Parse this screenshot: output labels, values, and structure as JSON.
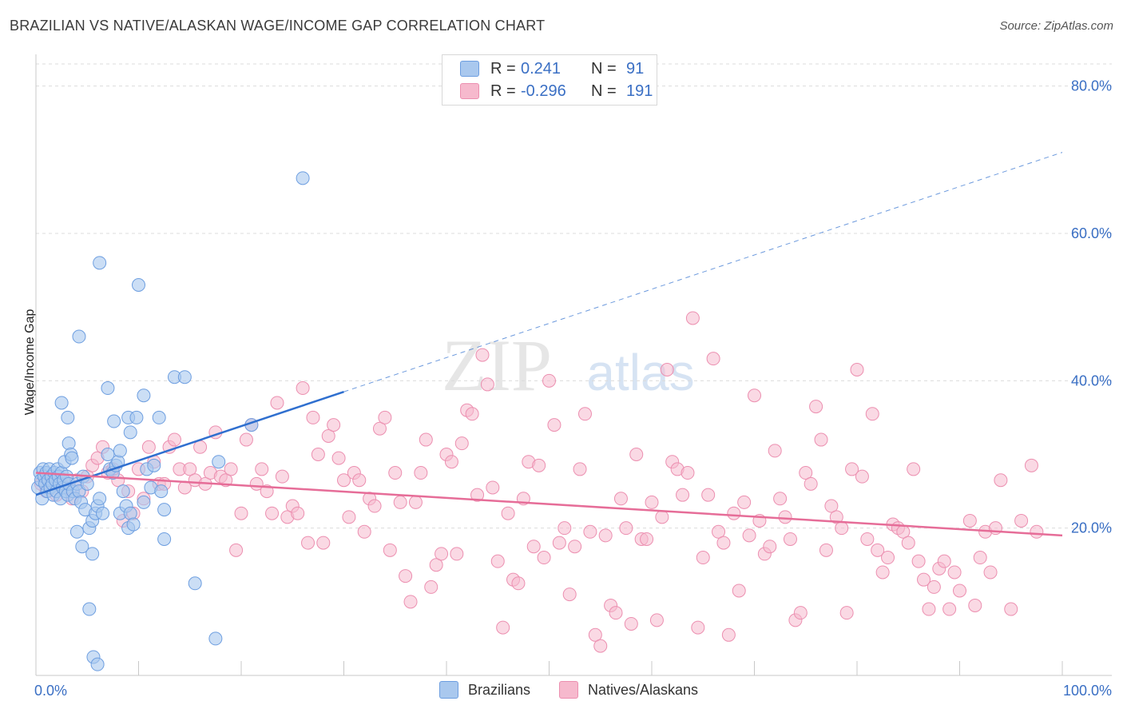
{
  "title": "BRAZILIAN VS NATIVE/ALASKAN WAGE/INCOME GAP CORRELATION CHART",
  "source": "Source: ZipAtlas.com",
  "watermark": {
    "zip": "ZIP",
    "atlas": "atlas"
  },
  "legend": {
    "r_label": "R =",
    "n_label": "N =",
    "rows": [
      {
        "r": "0.241",
        "n": "91"
      },
      {
        "r": "-0.296",
        "n": "191"
      }
    ]
  },
  "bottom_legend": [
    "Brazilians",
    "Natives/Alaskans"
  ],
  "colors": {
    "blue_fill": "#a9c8ee",
    "blue_stroke": "#6d9ee0",
    "blue_line": "#2f6fcf",
    "pink_fill": "#f6b9cd",
    "pink_stroke": "#ec8fb0",
    "pink_line": "#e66d98",
    "tick_text": "#3a6fc4"
  },
  "chart_data": {
    "type": "scatter",
    "title": "BRAZILIAN VS NATIVE/ALASKAN WAGE/INCOME GAP CORRELATION CHART",
    "xlabel": "",
    "ylabel": "Wage/Income Gap",
    "xlim": [
      0,
      100
    ],
    "ylim": [
      0,
      83
    ],
    "x_tick_labels": [
      "0.0%",
      "100.0%"
    ],
    "y_ticks": [
      20,
      40,
      60,
      80
    ],
    "y_tick_labels": [
      "20.0%",
      "40.0%",
      "60.0%",
      "80.0%"
    ],
    "grid": "horizontal dashed",
    "legend_position": "top-center",
    "series": [
      {
        "name": "Brazilians",
        "R": 0.241,
        "N": 91,
        "trend": {
          "solid": [
            [
              0,
              24.5
            ],
            [
              30,
              38.5
            ]
          ],
          "dashed": [
            [
              30,
              38.5
            ],
            [
              100,
              71
            ]
          ]
        },
        "points": [
          [
            0.2,
            25.5
          ],
          [
            0.4,
            27.5
          ],
          [
            0.5,
            26.5
          ],
          [
            0.6,
            24
          ],
          [
            0.7,
            28
          ],
          [
            0.8,
            27
          ],
          [
            0.9,
            26
          ],
          [
            1.0,
            27.5
          ],
          [
            1.1,
            25
          ],
          [
            1.2,
            26.5
          ],
          [
            1.3,
            28
          ],
          [
            1.4,
            25.5
          ],
          [
            1.5,
            27
          ],
          [
            1.6,
            26
          ],
          [
            1.7,
            24.5
          ],
          [
            1.8,
            27.5
          ],
          [
            1.9,
            26.5
          ],
          [
            2.0,
            25
          ],
          [
            2.1,
            28
          ],
          [
            2.2,
            27
          ],
          [
            2.3,
            26
          ],
          [
            2.4,
            24
          ],
          [
            2.5,
            27.5
          ],
          [
            2.6,
            25.5
          ],
          [
            2.7,
            26.5
          ],
          [
            2.8,
            29
          ],
          [
            2.9,
            25
          ],
          [
            3.0,
            27
          ],
          [
            3.1,
            24.5
          ],
          [
            3.2,
            26
          ],
          [
            2.5,
            37
          ],
          [
            3.1,
            35
          ],
          [
            3.2,
            31.5
          ],
          [
            3.4,
            30
          ],
          [
            3.5,
            29.5
          ],
          [
            3.6,
            25
          ],
          [
            3.8,
            24
          ],
          [
            4.0,
            26
          ],
          [
            4.2,
            25
          ],
          [
            4.4,
            23.5
          ],
          [
            4.6,
            27
          ],
          [
            4.8,
            22.5
          ],
          [
            5.0,
            26
          ],
          [
            5.2,
            20
          ],
          [
            5.5,
            21
          ],
          [
            5.8,
            22
          ],
          [
            6.0,
            23
          ],
          [
            6.2,
            24
          ],
          [
            6.5,
            22
          ],
          [
            7.0,
            30
          ],
          [
            7.2,
            28
          ],
          [
            7.5,
            27.5
          ],
          [
            7.8,
            28.5
          ],
          [
            8.0,
            29
          ],
          [
            8.2,
            22
          ],
          [
            8.5,
            25
          ],
          [
            8.8,
            23
          ],
          [
            9.0,
            20
          ],
          [
            9.2,
            22
          ],
          [
            9.5,
            20.5
          ],
          [
            4.2,
            46
          ],
          [
            6.2,
            56
          ],
          [
            10.0,
            53
          ],
          [
            4.0,
            19.5
          ],
          [
            4.5,
            17.5
          ],
          [
            5.5,
            16.5
          ],
          [
            5.2,
            9
          ],
          [
            5.6,
            2.5
          ],
          [
            6.0,
            1.5
          ],
          [
            10.5,
            23.5
          ],
          [
            10.8,
            28
          ],
          [
            11.2,
            25.5
          ],
          [
            11.5,
            28.5
          ],
          [
            12.0,
            35
          ],
          [
            12.2,
            25
          ],
          [
            12.5,
            22.5
          ],
          [
            13.5,
            40.5
          ],
          [
            14.5,
            40.5
          ],
          [
            15.5,
            12.5
          ],
          [
            17.5,
            5
          ],
          [
            17.8,
            29
          ],
          [
            21.0,
            34
          ],
          [
            26.0,
            67.5
          ],
          [
            7.0,
            39
          ],
          [
            10.5,
            38
          ],
          [
            9.0,
            35
          ],
          [
            9.2,
            33
          ],
          [
            7.6,
            34.5
          ],
          [
            9.8,
            35
          ],
          [
            8.2,
            30.5
          ],
          [
            12.5,
            18.5
          ]
        ]
      },
      {
        "name": "Natives/Alaskans",
        "R": -0.296,
        "N": 191,
        "trend": {
          "solid": [
            [
              0,
              27.5
            ],
            [
              100,
              19
            ]
          ]
        },
        "points": [
          [
            0.5,
            26
          ],
          [
            1.0,
            25
          ],
          [
            1.5,
            27
          ],
          [
            2.0,
            24.5
          ],
          [
            2.5,
            26
          ],
          [
            3.0,
            25.5
          ],
          [
            3.5,
            24
          ],
          [
            4.0,
            26.5
          ],
          [
            4.5,
            25
          ],
          [
            5.0,
            27
          ],
          [
            5.5,
            28.5
          ],
          [
            6.0,
            29.5
          ],
          [
            6.5,
            31
          ],
          [
            7.0,
            27.5
          ],
          [
            7.5,
            28
          ],
          [
            8.0,
            26.5
          ],
          [
            8.5,
            21
          ],
          [
            9.0,
            25
          ],
          [
            9.5,
            22
          ],
          [
            10.0,
            28
          ],
          [
            10.5,
            24
          ],
          [
            11.0,
            31
          ],
          [
            11.5,
            29
          ],
          [
            12.0,
            26
          ],
          [
            12.5,
            26
          ],
          [
            13.0,
            31
          ],
          [
            13.5,
            32
          ],
          [
            14.0,
            28
          ],
          [
            14.5,
            25.5
          ],
          [
            15.0,
            28
          ],
          [
            15.5,
            26.5
          ],
          [
            16.0,
            31
          ],
          [
            16.5,
            26
          ],
          [
            17.0,
            27.5
          ],
          [
            17.5,
            33
          ],
          [
            18.0,
            27
          ],
          [
            18.5,
            26.5
          ],
          [
            19.0,
            28
          ],
          [
            19.5,
            17
          ],
          [
            20.0,
            22
          ],
          [
            20.5,
            32
          ],
          [
            21.0,
            34
          ],
          [
            21.5,
            26
          ],
          [
            22.0,
            28
          ],
          [
            22.5,
            25
          ],
          [
            23.0,
            22
          ],
          [
            23.5,
            37
          ],
          [
            24.0,
            27
          ],
          [
            24.5,
            21.5
          ],
          [
            25.0,
            23
          ],
          [
            25.5,
            22
          ],
          [
            26.0,
            39
          ],
          [
            26.5,
            18
          ],
          [
            27.0,
            35
          ],
          [
            27.5,
            30
          ],
          [
            28.0,
            18
          ],
          [
            28.5,
            32.5
          ],
          [
            29.0,
            34
          ],
          [
            29.5,
            29.5
          ],
          [
            30.0,
            26.5
          ],
          [
            30.5,
            21.5
          ],
          [
            31.0,
            27.5
          ],
          [
            31.5,
            26.5
          ],
          [
            32.0,
            19.5
          ],
          [
            32.5,
            24
          ],
          [
            33.0,
            23
          ],
          [
            33.5,
            33.5
          ],
          [
            34.0,
            35
          ],
          [
            34.5,
            17
          ],
          [
            35.0,
            27.5
          ],
          [
            35.5,
            23.5
          ],
          [
            36.0,
            13.5
          ],
          [
            36.5,
            10
          ],
          [
            37.0,
            23.5
          ],
          [
            37.5,
            27.5
          ],
          [
            38.0,
            32
          ],
          [
            38.5,
            12
          ],
          [
            39.0,
            15
          ],
          [
            39.5,
            16.5
          ],
          [
            40.0,
            30
          ],
          [
            40.5,
            29
          ],
          [
            41.0,
            16.5
          ],
          [
            41.5,
            31.5
          ],
          [
            42.0,
            36
          ],
          [
            42.5,
            35.5
          ],
          [
            43.0,
            24.5
          ],
          [
            43.5,
            43.5
          ],
          [
            44.0,
            39.5
          ],
          [
            44.5,
            25.5
          ],
          [
            45.0,
            15.5
          ],
          [
            45.5,
            6.5
          ],
          [
            46.0,
            22
          ],
          [
            46.5,
            13
          ],
          [
            47.0,
            12.5
          ],
          [
            47.5,
            24
          ],
          [
            48.0,
            29
          ],
          [
            48.5,
            17.5
          ],
          [
            49.0,
            28.5
          ],
          [
            49.5,
            16
          ],
          [
            50.0,
            40
          ],
          [
            50.5,
            34
          ],
          [
            51.0,
            18
          ],
          [
            51.5,
            20
          ],
          [
            52.0,
            11
          ],
          [
            52.5,
            17.5
          ],
          [
            53.0,
            28
          ],
          [
            53.5,
            35.5
          ],
          [
            54.0,
            19.5
          ],
          [
            54.5,
            5.5
          ],
          [
            55.0,
            4
          ],
          [
            55.5,
            19
          ],
          [
            56.0,
            9.5
          ],
          [
            56.5,
            8.5
          ],
          [
            57.0,
            24
          ],
          [
            57.5,
            20
          ],
          [
            58.0,
            7
          ],
          [
            58.5,
            30
          ],
          [
            59.0,
            18.5
          ],
          [
            59.5,
            18.5
          ],
          [
            60.0,
            23.5
          ],
          [
            60.5,
            7.5
          ],
          [
            61.0,
            21.5
          ],
          [
            61.5,
            41.5
          ],
          [
            62.0,
            29
          ],
          [
            62.5,
            28
          ],
          [
            63.0,
            24.5
          ],
          [
            63.5,
            27.5
          ],
          [
            64.0,
            48.5
          ],
          [
            64.5,
            6.5
          ],
          [
            65.0,
            16
          ],
          [
            65.5,
            24.5
          ],
          [
            66.0,
            43
          ],
          [
            66.5,
            19.5
          ],
          [
            67.0,
            18
          ],
          [
            67.5,
            5.5
          ],
          [
            68.0,
            22
          ],
          [
            68.5,
            11.5
          ],
          [
            69.0,
            23.5
          ],
          [
            69.5,
            19
          ],
          [
            70.0,
            38
          ],
          [
            70.5,
            21
          ],
          [
            71.0,
            16.5
          ],
          [
            71.5,
            17.5
          ],
          [
            72.0,
            30.5
          ],
          [
            72.5,
            24
          ],
          [
            73.0,
            21.5
          ],
          [
            73.5,
            18.5
          ],
          [
            74.0,
            7.5
          ],
          [
            74.5,
            8.5
          ],
          [
            75.0,
            27.5
          ],
          [
            75.5,
            26
          ],
          [
            76.0,
            36.5
          ],
          [
            76.5,
            32
          ],
          [
            77.0,
            17
          ],
          [
            77.5,
            23
          ],
          [
            78.0,
            21.5
          ],
          [
            78.5,
            20
          ],
          [
            79.0,
            8.5
          ],
          [
            79.5,
            28
          ],
          [
            80.0,
            41.5
          ],
          [
            80.5,
            27
          ],
          [
            81.0,
            18.5
          ],
          [
            81.5,
            35.5
          ],
          [
            82.0,
            17
          ],
          [
            82.5,
            14
          ],
          [
            83.0,
            16
          ],
          [
            83.5,
            20.5
          ],
          [
            84.0,
            20
          ],
          [
            84.5,
            19.5
          ],
          [
            85.0,
            18
          ],
          [
            85.5,
            28
          ],
          [
            86.0,
            15.5
          ],
          [
            86.5,
            13
          ],
          [
            87.0,
            9
          ],
          [
            87.5,
            12
          ],
          [
            88.0,
            14.5
          ],
          [
            88.5,
            15.5
          ],
          [
            89.0,
            9
          ],
          [
            89.5,
            14
          ],
          [
            90.0,
            11.5
          ],
          [
            91.0,
            21
          ],
          [
            91.5,
            9.5
          ],
          [
            92.0,
            16
          ],
          [
            92.5,
            19.5
          ],
          [
            93.0,
            14
          ],
          [
            93.5,
            20
          ],
          [
            94.0,
            26.5
          ],
          [
            95.0,
            9
          ],
          [
            96.0,
            21
          ],
          [
            97.0,
            28.5
          ],
          [
            97.5,
            19.5
          ]
        ]
      }
    ]
  }
}
